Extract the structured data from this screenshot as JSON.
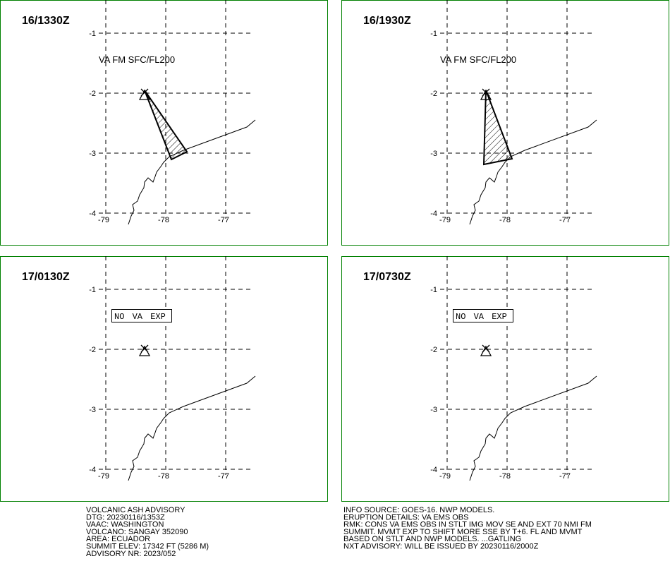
{
  "panels": [
    {
      "time": "16/1330Z",
      "annotation": "VA FM SFC/FL200"
    },
    {
      "time": "16/1930Z",
      "annotation": "VA FM SFC/FL200"
    },
    {
      "time": "17/0130Z",
      "annotation": "NO VA EXP"
    },
    {
      "time": "17/0730Z",
      "annotation": "NO VA EXP"
    }
  ],
  "lat_labels": [
    "-1",
    "-2",
    "-3",
    "-4"
  ],
  "lon_labels": [
    "-79",
    "-78",
    "-77"
  ],
  "advisory_left": [
    "VOLCANIC ASH ADVISORY",
    "DTG: 20230116/1353Z",
    "VAAC: WASHINGTON",
    "VOLCANO: SANGAY 352090",
    "AREA: ECUADOR",
    "SUMMIT ELEV: 17342 FT (5286 M)",
    "ADVISORY NR: 2023/052"
  ],
  "advisory_right": [
    "INFO SOURCE: GOES-16. NWP MODELS.",
    "ERUPTION DETAILS: VA EMS OBS",
    "RMK: CONS VA EMS OBS IN STLT IMG MOV SE AND EXT 70 NMI FM",
    "SUMMIT. MVMT EXP TO SHIFT MORE SSE BY T+6. FL AND MVMT",
    "BASED ON STLT AND NWP MODELS. ...GATLING",
    "NXT ADVISORY: WILL BE ISSUED BY 20230116/2000Z"
  ]
}
